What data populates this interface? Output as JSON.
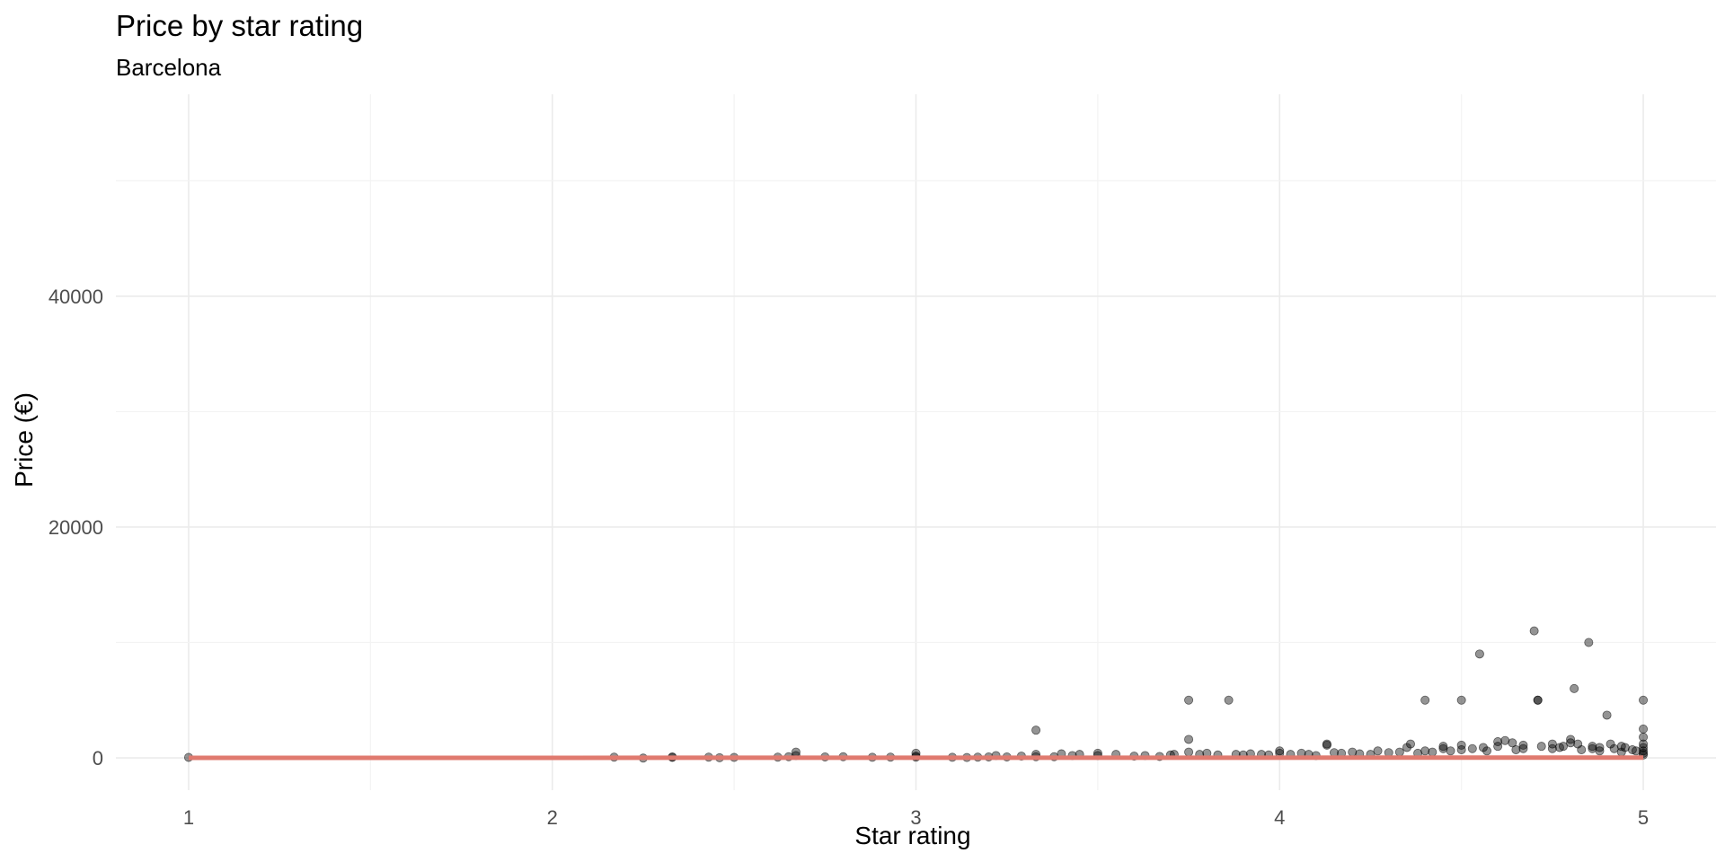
{
  "chart_data": {
    "type": "scatter",
    "title": "Price by star rating",
    "subtitle": "Barcelona",
    "xlabel": "Star rating",
    "ylabel": "Price (€)",
    "xlim": [
      0.8,
      5.2
    ],
    "ylim": [
      -2800,
      57500
    ],
    "x_ticks": [
      1,
      2,
      3,
      4,
      5
    ],
    "x_tick_labels": [
      "1",
      "2",
      "3",
      "4",
      "5"
    ],
    "y_ticks": [
      0,
      20000,
      40000
    ],
    "y_tick_labels": [
      "0",
      "20000",
      "40000"
    ],
    "grid": true,
    "legend": "none",
    "point_color": "#000000",
    "trend_color": "#e07a6f",
    "trend_line": {
      "x": [
        1,
        5
      ],
      "y": [
        0,
        20
      ]
    },
    "x": [
      1,
      2.17,
      2.25,
      2.33,
      2.33,
      2.43,
      2.46,
      2.5,
      2.62,
      2.65,
      2.67,
      2.67,
      2.75,
      2.8,
      2.88,
      2.93,
      3,
      3,
      3,
      3.1,
      3.14,
      3.17,
      3.2,
      3.22,
      3.25,
      3.29,
      3.33,
      3.33,
      3.33,
      3.38,
      3.4,
      3.43,
      3.45,
      3.5,
      3.5,
      3.55,
      3.6,
      3.63,
      3.67,
      3.7,
      3.71,
      3.75,
      3.75,
      3.75,
      3.78,
      3.8,
      3.83,
      3.86,
      3.88,
      3.9,
      3.92,
      3.95,
      3.97,
      4,
      4,
      4.03,
      4.06,
      4.08,
      4.1,
      4.13,
      4.13,
      4.15,
      4.17,
      4.2,
      4.22,
      4.25,
      4.27,
      4.3,
      4.33,
      4.35,
      4.36,
      4.38,
      4.4,
      4.4,
      4.42,
      4.45,
      4.45,
      4.47,
      4.5,
      4.5,
      4.5,
      4.53,
      4.55,
      4.56,
      4.57,
      4.6,
      4.6,
      4.62,
      4.64,
      4.65,
      4.67,
      4.67,
      4.7,
      4.71,
      4.71,
      4.72,
      4.75,
      4.75,
      4.77,
      4.78,
      4.8,
      4.8,
      4.81,
      4.82,
      4.83,
      4.85,
      4.86,
      4.86,
      4.88,
      4.88,
      4.9,
      4.91,
      4.92,
      4.94,
      4.94,
      4.95,
      4.97,
      4.98,
      5,
      5,
      5,
      5,
      5,
      5,
      5,
      5
    ],
    "y": [
      40,
      60,
      -20,
      40,
      80,
      60,
      10,
      40,
      60,
      100,
      500,
      200,
      80,
      100,
      50,
      60,
      400,
      150,
      60,
      50,
      30,
      60,
      80,
      200,
      80,
      150,
      2400,
      300,
      100,
      100,
      350,
      200,
      300,
      400,
      200,
      300,
      150,
      200,
      120,
      250,
      300,
      5000,
      1600,
      500,
      300,
      400,
      250,
      5000,
      300,
      250,
      350,
      300,
      250,
      600,
      400,
      300,
      400,
      300,
      200,
      1200,
      1100,
      450,
      400,
      500,
      350,
      300,
      600,
      450,
      500,
      900,
      1200,
      400,
      5000,
      600,
      500,
      1000,
      800,
      600,
      5000,
      1100,
      700,
      800,
      9000,
      900,
      600,
      1400,
      1000,
      1500,
      1300,
      700,
      800,
      1100,
      11000,
      5000,
      5000,
      1000,
      1200,
      800,
      900,
      1000,
      1600,
      1300,
      6000,
      1200,
      700,
      10000,
      1000,
      800,
      600,
      900,
      3700,
      1200,
      800,
      1000,
      500,
      900,
      700,
      600,
      5000,
      2500,
      1800,
      1200,
      900,
      600,
      400,
      250
    ]
  }
}
